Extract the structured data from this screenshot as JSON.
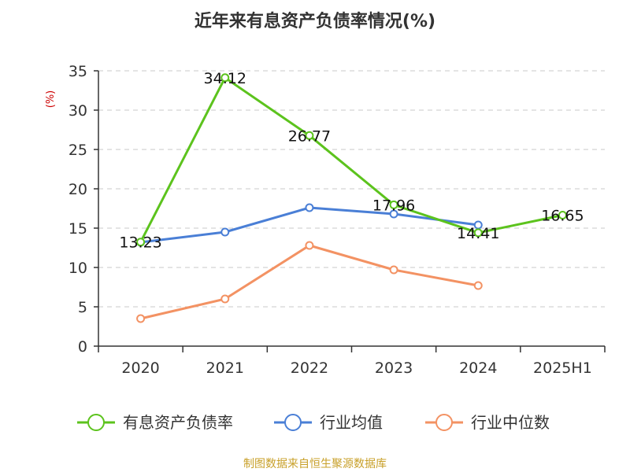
{
  "title": "近年来有息资产负债率情况(%)",
  "source": "制图数据来自恒生聚源数据库",
  "colors": {
    "title": "#333333",
    "ylabel": "#cc0000",
    "source": "#c8a02a",
    "grid": "#c8c8c8",
    "axis": "#333333"
  },
  "chart_data": {
    "type": "line",
    "title": "近年来有息资产负债率情况(%)",
    "ylabel": "(%)",
    "xlabel": "",
    "categories": [
      "2020",
      "2021",
      "2022",
      "2023",
      "2024",
      "2025H1"
    ],
    "ylim": [
      0,
      35
    ],
    "yticks": [
      0,
      5,
      10,
      15,
      20,
      25,
      30,
      35
    ],
    "grid": true,
    "legend_position": "bottom",
    "series": [
      {
        "name": "有息资产负债率",
        "color": "#5cc31d",
        "values": [
          13.23,
          34.12,
          26.77,
          17.96,
          14.41,
          16.65
        ],
        "labels": [
          "13.23",
          "34.12",
          "26.77",
          "17.96",
          "14.41",
          "16.65"
        ]
      },
      {
        "name": "行业均值",
        "color": "#4a7fd6",
        "values": [
          13.2,
          14.5,
          17.6,
          16.8,
          15.4,
          null
        ],
        "labels": null
      },
      {
        "name": "行业中位数",
        "color": "#f39263",
        "values": [
          3.5,
          6.0,
          12.8,
          9.7,
          7.7,
          null
        ],
        "labels": null
      }
    ]
  }
}
